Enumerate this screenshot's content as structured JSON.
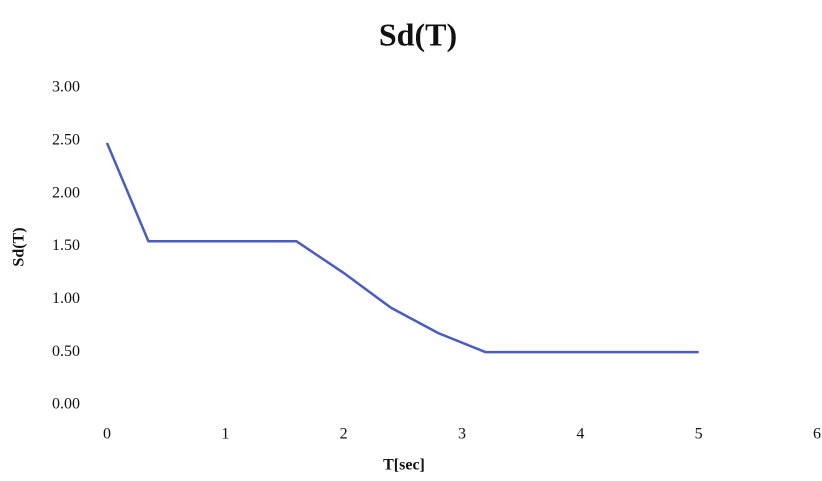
{
  "chart_data": {
    "type": "line",
    "title": "Sd(T)",
    "x_label": "T[sec]",
    "y_label": "Sd(T)",
    "x": [
      0,
      0.35,
      1.6,
      2.0,
      2.4,
      2.8,
      3.2,
      5
    ],
    "series": [
      {
        "color": "#4a5cc0",
        "values": [
          2.48,
          1.55,
          1.55,
          1.25,
          0.92,
          0.68,
          0.5,
          0.5
        ]
      }
    ],
    "xlim": [
      0,
      6
    ],
    "xticks": [
      0,
      1,
      2,
      3,
      4,
      5,
      6
    ],
    "ylim": [
      0,
      3
    ],
    "yticks": [
      {
        "value": 0,
        "label": "0.00"
      },
      {
        "value": 0.5,
        "label": "0.50"
      },
      {
        "value": 1,
        "label": "1.00"
      },
      {
        "value": 1.5,
        "label": "1.50"
      },
      {
        "value": 2,
        "label": "2.00"
      },
      {
        "value": 2.5,
        "label": "2.50"
      },
      {
        "value": 3,
        "label": "3.00"
      }
    ],
    "grid": false
  }
}
